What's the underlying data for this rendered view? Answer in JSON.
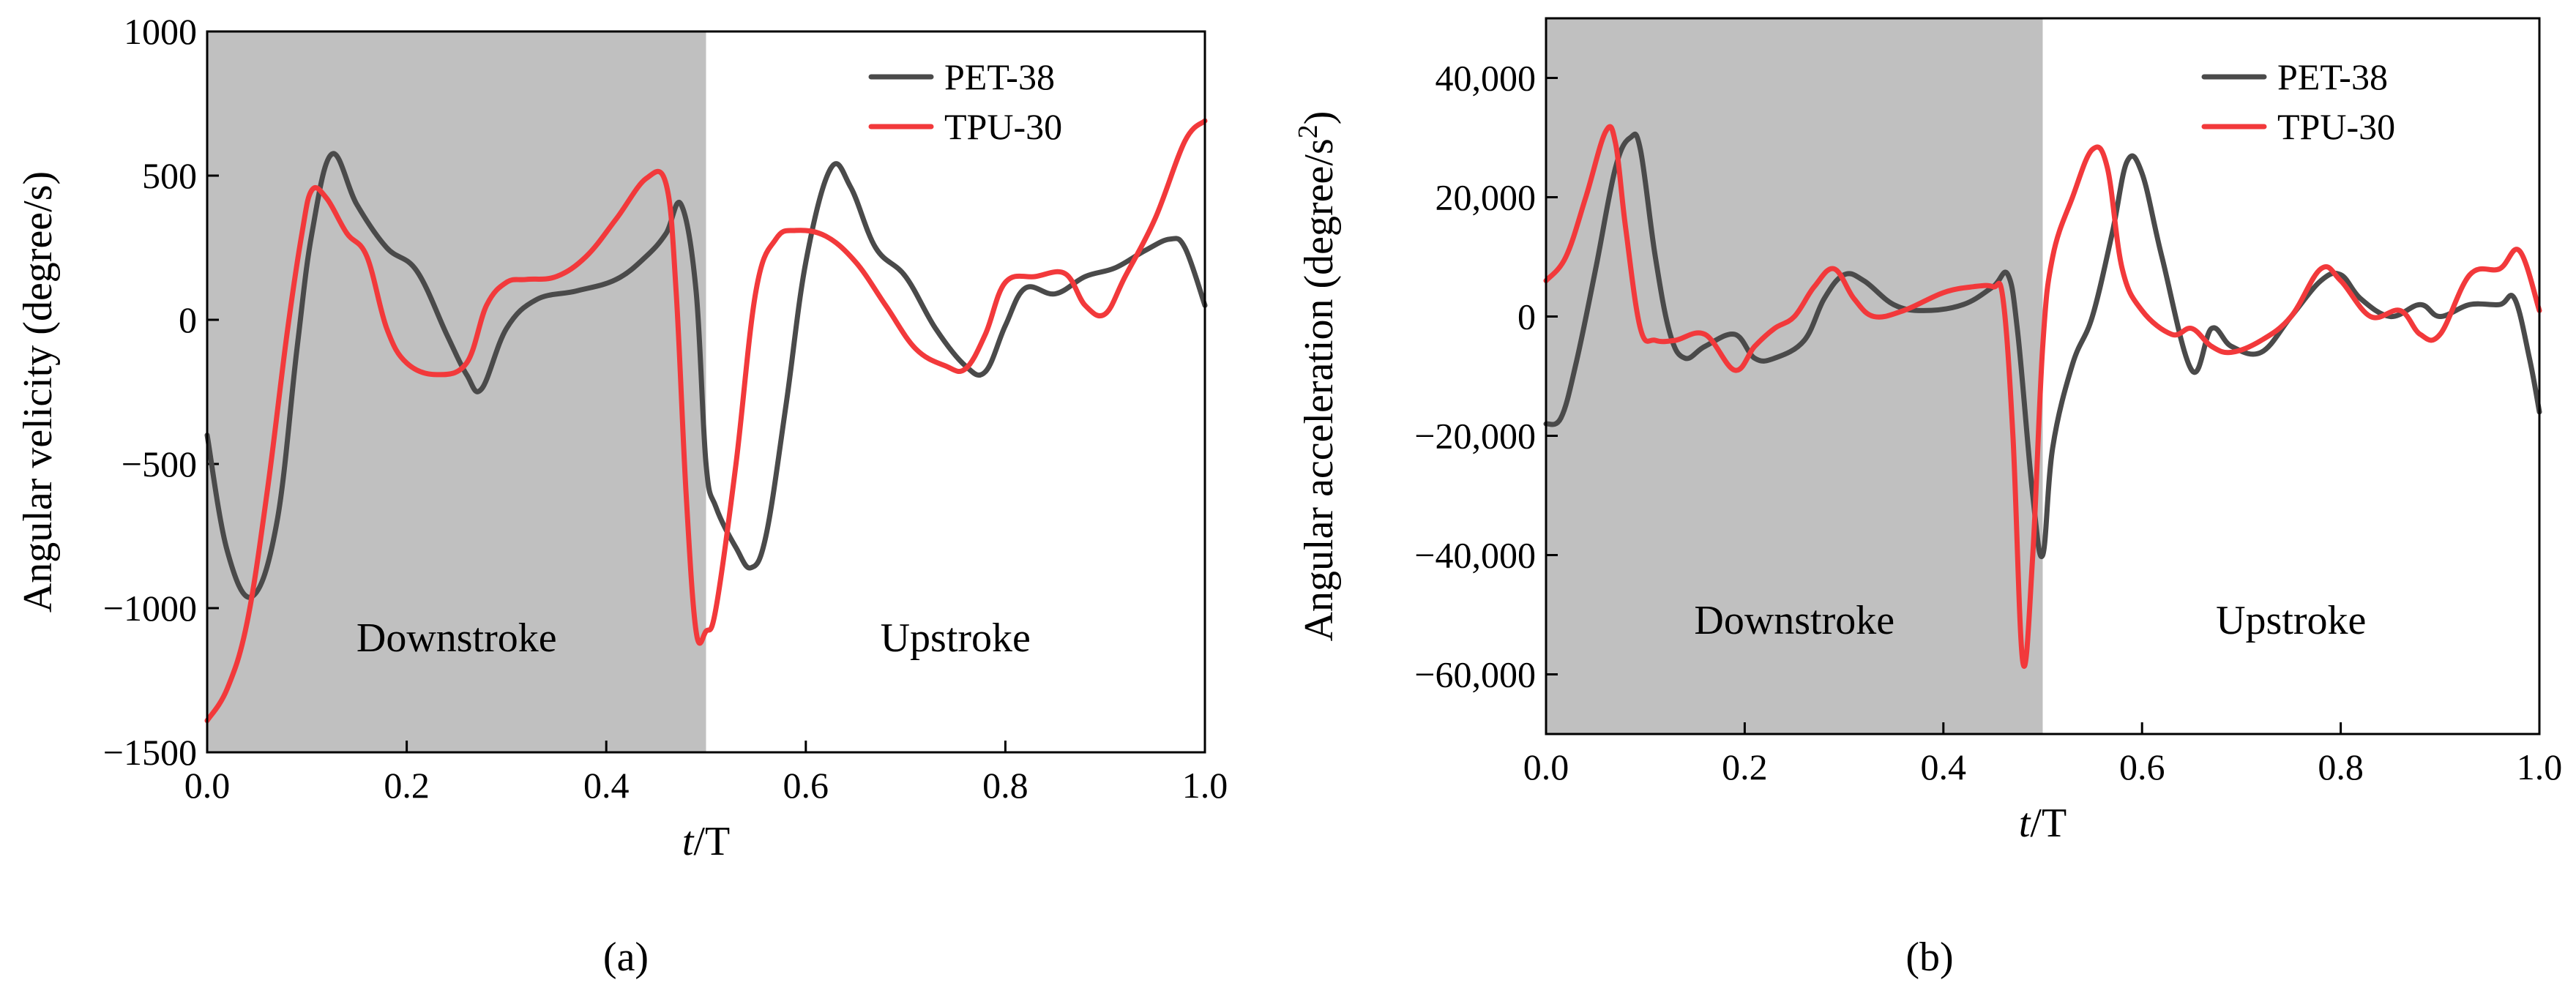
{
  "colors": {
    "pet": "#4a4a4a",
    "tpu": "#f2393b",
    "downstroke_shade": "#c0c0c0"
  },
  "chart_data": [
    {
      "type": "line",
      "panel_label": "(a)",
      "title": "",
      "xlabel_italic": "t",
      "xlabel_rest": "/T",
      "ylabel": "Angular velicity (degree/s)",
      "xlim": [
        0.0,
        1.0
      ],
      "ylim": [
        -1500,
        1000
      ],
      "xticks": [
        0.0,
        0.2,
        0.4,
        0.6,
        0.8,
        1.0
      ],
      "xtick_labels": [
        "0.0",
        "0.2",
        "0.4",
        "0.6",
        "0.8",
        "1.0"
      ],
      "yticks": [
        -1500,
        -1000,
        -500,
        0,
        500,
        1000
      ],
      "ytick_labels": [
        "−1500",
        "−1000",
        "−500",
        "0",
        "500",
        "1000"
      ],
      "shaded_region": {
        "x_range": [
          0.0,
          0.5
        ],
        "label": "Downstroke"
      },
      "unshaded_label": "Upstroke",
      "legend_position": "top-right",
      "series": [
        {
          "name": "PET-38",
          "color_key": "pet",
          "x": [
            0.0,
            0.02,
            0.045,
            0.07,
            0.09,
            0.105,
            0.125,
            0.15,
            0.18,
            0.21,
            0.24,
            0.26,
            0.275,
            0.3,
            0.33,
            0.37,
            0.41,
            0.44,
            0.46,
            0.475,
            0.49,
            0.5,
            0.51,
            0.53,
            0.545,
            0.56,
            0.58,
            0.6,
            0.625,
            0.645,
            0.67,
            0.7,
            0.73,
            0.76,
            0.78,
            0.8,
            0.82,
            0.85,
            0.88,
            0.91,
            0.94,
            0.965,
            0.98,
            1.0
          ],
          "y": [
            -400,
            -800,
            -960,
            -700,
            -100,
            300,
            575,
            400,
            250,
            170,
            -50,
            -190,
            -240,
            -30,
            70,
            100,
            140,
            220,
            300,
            400,
            100,
            -500,
            -650,
            -790,
            -860,
            -750,
            -300,
            200,
            525,
            460,
            250,
            150,
            -30,
            -160,
            -180,
            -20,
            110,
            90,
            150,
            180,
            240,
            280,
            250,
            50
          ]
        },
        {
          "name": "TPU-30",
          "color_key": "tpu",
          "x": [
            0.0,
            0.02,
            0.04,
            0.06,
            0.08,
            0.095,
            0.105,
            0.12,
            0.14,
            0.16,
            0.18,
            0.2,
            0.23,
            0.26,
            0.28,
            0.3,
            0.32,
            0.35,
            0.38,
            0.41,
            0.44,
            0.46,
            0.47,
            0.48,
            0.49,
            0.5,
            0.51,
            0.53,
            0.55,
            0.57,
            0.59,
            0.62,
            0.65,
            0.68,
            0.71,
            0.74,
            0.76,
            0.78,
            0.8,
            0.83,
            0.86,
            0.88,
            0.9,
            0.92,
            0.95,
            0.98,
            1.0
          ],
          "y": [
            -1390,
            -1280,
            -1050,
            -600,
            -50,
            300,
            450,
            420,
            300,
            220,
            -30,
            -150,
            -190,
            -150,
            50,
            130,
            140,
            150,
            220,
            350,
            490,
            470,
            100,
            -600,
            -1080,
            -1080,
            -1000,
            -500,
            100,
            280,
            310,
            290,
            200,
            50,
            -100,
            -160,
            -170,
            -50,
            130,
            150,
            160,
            50,
            20,
            150,
            350,
            620,
            690
          ]
        }
      ]
    },
    {
      "type": "line",
      "panel_label": "(b)",
      "title": "",
      "xlabel_italic": "t",
      "xlabel_rest": "/T",
      "ylabel": "Angular acceleration (degree/s",
      "ylabel_superscript": "2",
      "ylabel_close": ")",
      "xlim": [
        0.0,
        1.0
      ],
      "ylim": [
        -70000,
        50000
      ],
      "xticks": [
        0.0,
        0.2,
        0.4,
        0.6,
        0.8,
        1.0
      ],
      "xtick_labels": [
        "0.0",
        "0.2",
        "0.4",
        "0.6",
        "0.8",
        "1.0"
      ],
      "yticks": [
        -60000,
        -40000,
        -20000,
        0,
        20000,
        40000
      ],
      "ytick_labels": [
        "−60,000",
        "−40,000",
        "−20,000",
        "0",
        "20,000",
        "40,000"
      ],
      "shaded_region": {
        "x_range": [
          0.0,
          0.5
        ],
        "label": "Downstroke"
      },
      "unshaded_label": "Upstroke",
      "legend_position": "top-right",
      "series": [
        {
          "name": "PET-38",
          "color_key": "pet",
          "x": [
            0.0,
            0.015,
            0.03,
            0.05,
            0.07,
            0.085,
            0.095,
            0.11,
            0.125,
            0.14,
            0.16,
            0.19,
            0.21,
            0.23,
            0.26,
            0.28,
            0.3,
            0.32,
            0.35,
            0.38,
            0.42,
            0.45,
            0.465,
            0.475,
            0.49,
            0.5,
            0.51,
            0.53,
            0.55,
            0.57,
            0.585,
            0.6,
            0.62,
            0.65,
            0.67,
            0.69,
            0.72,
            0.75,
            0.78,
            0.8,
            0.82,
            0.85,
            0.88,
            0.9,
            0.93,
            0.96,
            0.975,
            0.99,
            1.0
          ],
          "y": [
            -18000,
            -17000,
            -8000,
            8000,
            25000,
            30000,
            28000,
            10000,
            -3000,
            -7000,
            -5000,
            -3000,
            -7000,
            -7000,
            -4000,
            3000,
            7000,
            6000,
            2000,
            1000,
            2000,
            5000,
            7000,
            -3000,
            -30000,
            -40000,
            -22000,
            -8000,
            0,
            14000,
            26000,
            24000,
            10000,
            -9000,
            -2000,
            -5000,
            -6000,
            0,
            6000,
            7000,
            3000,
            0,
            2000,
            0,
            2000,
            2000,
            3000,
            -7000,
            -16000
          ]
        },
        {
          "name": "TPU-30",
          "color_key": "tpu",
          "x": [
            0.0,
            0.02,
            0.04,
            0.06,
            0.07,
            0.08,
            0.095,
            0.11,
            0.13,
            0.16,
            0.19,
            0.21,
            0.23,
            0.25,
            0.27,
            0.29,
            0.31,
            0.33,
            0.36,
            0.4,
            0.43,
            0.45,
            0.46,
            0.47,
            0.48,
            0.49,
            0.5,
            0.51,
            0.53,
            0.55,
            0.565,
            0.58,
            0.6,
            0.63,
            0.65,
            0.67,
            0.69,
            0.72,
            0.75,
            0.78,
            0.8,
            0.83,
            0.86,
            0.88,
            0.9,
            0.93,
            0.96,
            0.98,
            1.0
          ],
          "y": [
            6000,
            10000,
            20000,
            31000,
            29000,
            15000,
            -2000,
            -4000,
            -4000,
            -3000,
            -9000,
            -5000,
            -2000,
            0,
            5000,
            8000,
            3000,
            0,
            1000,
            4000,
            5000,
            5000,
            3000,
            -20000,
            -58000,
            -40000,
            -5000,
            10000,
            20000,
            28000,
            25000,
            8000,
            1000,
            -3000,
            -2000,
            -5000,
            -6000,
            -4000,
            0,
            8000,
            6000,
            0,
            1000,
            -3000,
            -3000,
            7000,
            8000,
            11000,
            1000
          ]
        }
      ]
    }
  ]
}
